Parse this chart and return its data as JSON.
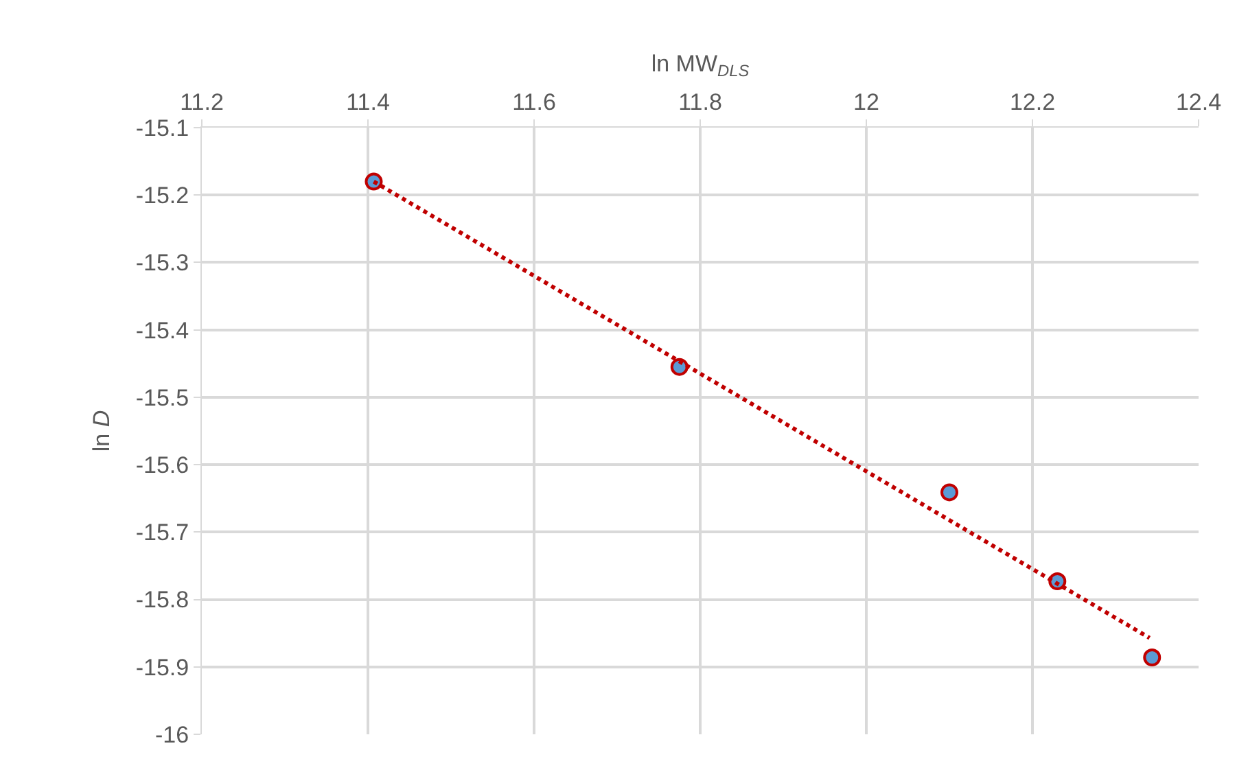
{
  "chart_data": {
    "type": "scatter",
    "xlabel": "ln MW$_{DLS}$",
    "ylabel": "ln D",
    "xlim": [
      11.2,
      12.4
    ],
    "xticks": [
      11.2,
      11.4,
      11.6,
      11.8,
      12,
      12.2,
      12.4
    ],
    "ylim": [
      -16,
      -15.1
    ],
    "yticks": [
      -16,
      -15.9,
      -15.8,
      -15.7,
      -15.6,
      -15.5,
      -15.4,
      -15.3,
      -15.2,
      -15.1
    ],
    "grid": true,
    "series": [
      {
        "marker": "circle",
        "color": "#5b9bd5",
        "x": [
          11.407,
          11.775,
          12.1,
          12.23,
          12.344
        ],
        "values": [
          -15.18,
          -15.455,
          -15.641,
          -15.773,
          -15.886
        ]
      },
      {
        "type": "line",
        "color": "#c00000",
        "line_style": "dotted",
        "x": [
          11.407,
          12.341
        ],
        "values": [
          -15.18,
          -15.857
        ]
      }
    ]
  }
}
